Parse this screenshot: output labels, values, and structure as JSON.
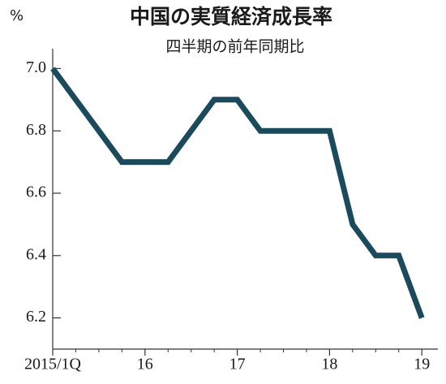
{
  "chart_data": {
    "type": "line",
    "title": "中国の実質経済成長率",
    "subtitle": "四半期の前年同期比",
    "y_unit": "%",
    "categories": [
      "2015/1Q",
      null,
      null,
      null,
      "16",
      null,
      null,
      null,
      "17",
      null,
      null,
      null,
      "18",
      null,
      null,
      null,
      "19"
    ],
    "series": [
      {
        "name": "実質経済成長率",
        "color": "#1b4a5c",
        "values": [
          7.0,
          6.9,
          6.8,
          6.7,
          6.7,
          6.7,
          6.8,
          6.9,
          6.9,
          6.8,
          6.8,
          6.8,
          6.8,
          6.5,
          6.4,
          6.4,
          6.2
        ]
      }
    ],
    "ylim": [
      6.1,
      7.05
    ],
    "yticks": [
      {
        "value": 6.2,
        "label": "6.2"
      },
      {
        "value": 6.4,
        "label": "6.4"
      },
      {
        "value": 6.6,
        "label": "6.6"
      },
      {
        "value": 6.8,
        "label": "6.8"
      },
      {
        "value": 7.0,
        "label": "7.0"
      }
    ],
    "legend": false
  }
}
